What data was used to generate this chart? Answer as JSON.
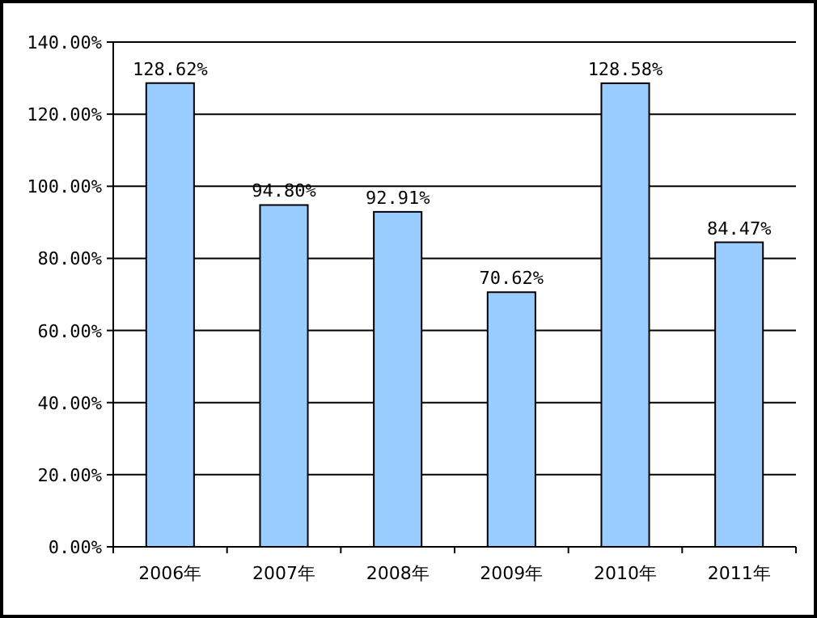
{
  "chart_data": {
    "type": "bar",
    "categories": [
      "2006年",
      "2007年",
      "2008年",
      "2009年",
      "2010年",
      "2011年"
    ],
    "values": [
      128.62,
      94.8,
      92.91,
      70.62,
      128.58,
      84.47
    ],
    "value_labels": [
      "128.62%",
      "94.80%",
      "92.91%",
      "70.62%",
      "128.58%",
      "84.47%"
    ],
    "color": "#99ccff",
    "ylim": [
      0,
      140
    ],
    "yticks": [
      {
        "value": 0,
        "label": "0.00%"
      },
      {
        "value": 20,
        "label": "20.00%"
      },
      {
        "value": 40,
        "label": "40.00%"
      },
      {
        "value": 60,
        "label": "60.00%"
      },
      {
        "value": 80,
        "label": "80.00%"
      },
      {
        "value": 100,
        "label": "100.00%"
      },
      {
        "value": 120,
        "label": "120.00%"
      },
      {
        "value": 140,
        "label": "140.00%"
      }
    ],
    "grid": "y"
  }
}
